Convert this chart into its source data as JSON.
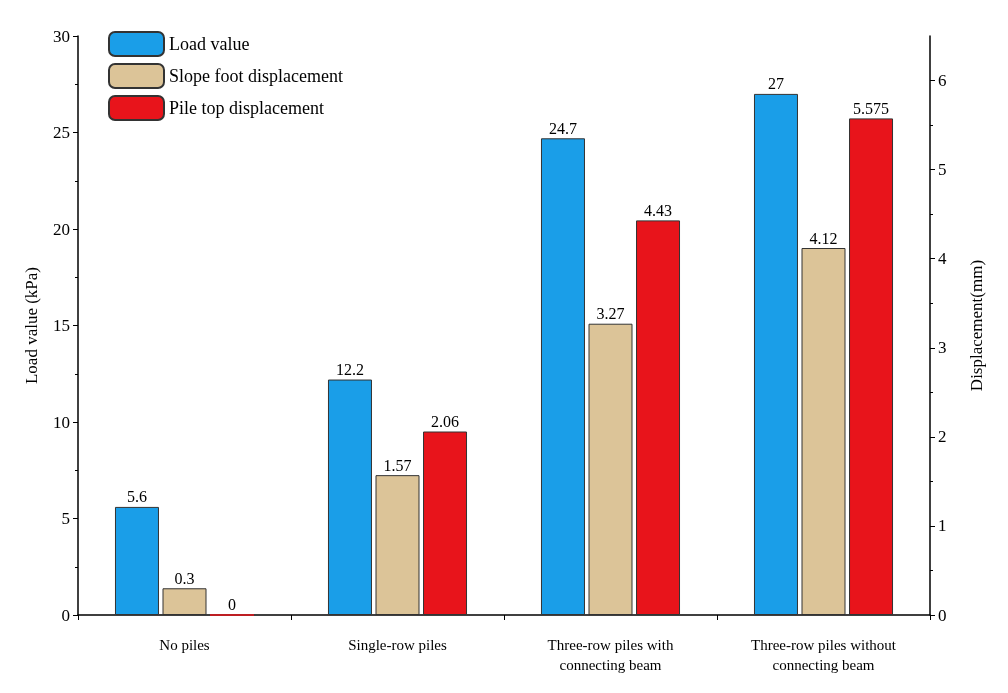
{
  "chart_data": {
    "type": "bar",
    "categories": [
      "No piles",
      "Single-row piles",
      "Three-row piles with\nconnecting beam",
      "Three-row piles without\nconnecting beam"
    ],
    "series": [
      {
        "name": "Load value",
        "color": "#1a9ee8",
        "values": [
          5.6,
          12.2,
          24.7,
          27
        ]
      },
      {
        "name": "Slope foot displacement",
        "color": "#dcc498",
        "values": [
          0.3,
          1.57,
          3.27,
          4.12
        ],
        "axis": "y2"
      },
      {
        "name": "Pile top displacement",
        "color": "#e8141b",
        "values": [
          0,
          2.06,
          4.43,
          5.575
        ],
        "axis": "y2"
      }
    ],
    "ylabel": "Load value (kPa)",
    "y2label": "Displacement(mm)",
    "ylim": [
      0,
      30
    ],
    "yticks": [
      0,
      5,
      10,
      15,
      20,
      25,
      30
    ],
    "y2lim": [
      0,
      6.5
    ],
    "y2ticks": [
      0,
      1,
      2,
      3,
      4,
      5,
      6
    ],
    "data_labels": true,
    "legend": "top left",
    "grid": false
  }
}
